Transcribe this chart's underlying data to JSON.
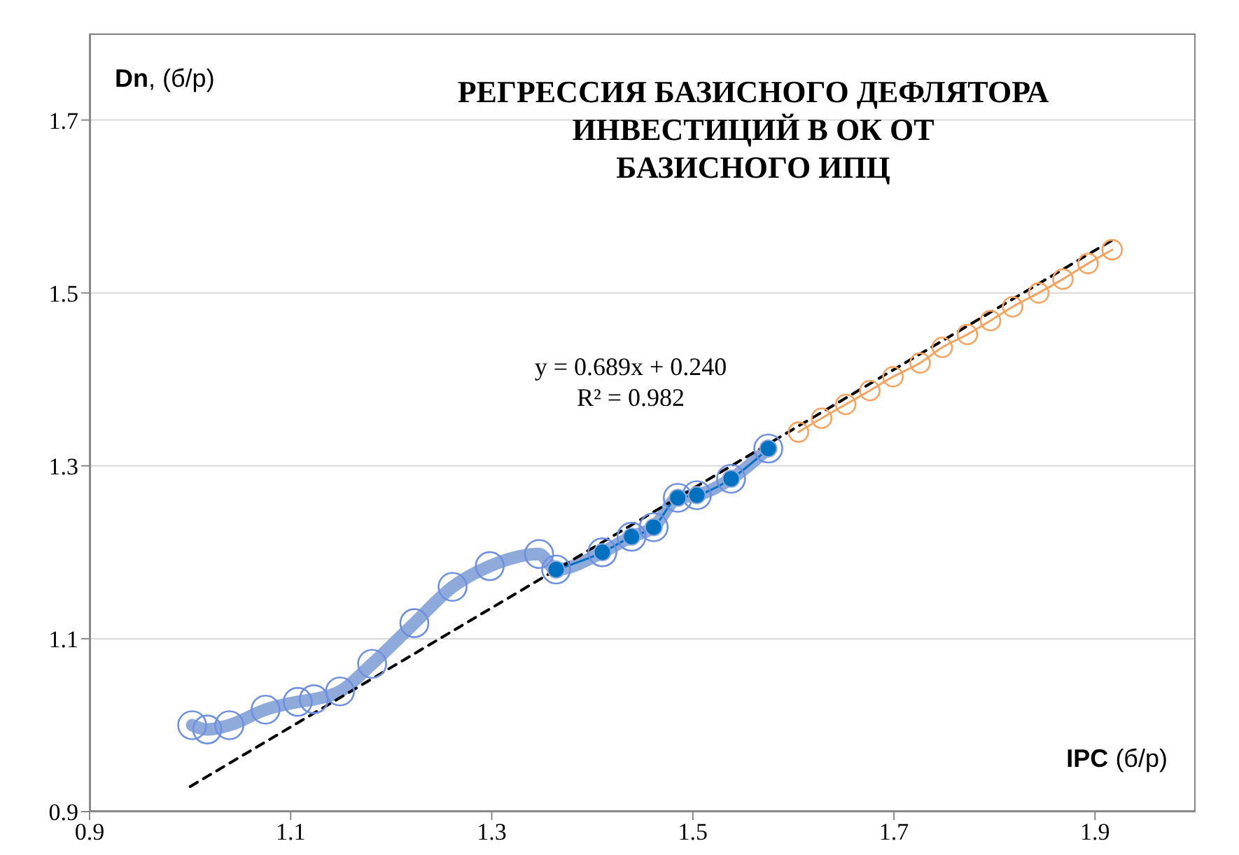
{
  "chart_data": {
    "type": "line",
    "title": "РЕГРЕССИЯ БАЗИСНОГО ДЕФЛЯТОРА\nИНВЕСТИЦИЙ В ОК ОТ\nБАЗИСНОГО ИПЦ",
    "xlabel": "IPC (б/р)",
    "ylabel": "Dn, (б/р)",
    "xlim": [
      0.9,
      2.0
    ],
    "xticks": [
      0.9,
      1.1,
      1.3,
      1.5,
      1.7,
      1.9
    ],
    "ylim": [
      0.9,
      1.8
    ],
    "yticks": [
      0.9,
      1.1,
      1.3,
      1.5,
      1.7
    ],
    "grid": "y",
    "annotations": [
      "y = 0.689x + 0.240",
      "R² = 0.982"
    ],
    "series": [
      {
        "color": "#8eaadb",
        "marker": "circle",
        "x": [
          1.002,
          1.017,
          1.039,
          1.075,
          1.107,
          1.123,
          1.149,
          1.181,
          1.223,
          1.261,
          1.298,
          1.347,
          1.364,
          1.41,
          1.439,
          1.461,
          1.485,
          1.504,
          1.538,
          1.575
        ],
        "values": [
          1.0,
          0.995,
          1.0,
          1.018,
          1.027,
          1.03,
          1.039,
          1.071,
          1.118,
          1.16,
          1.184,
          1.198,
          1.18,
          1.2,
          1.218,
          1.229,
          1.263,
          1.266,
          1.285,
          1.32
        ]
      },
      {
        "color": "#0070c0",
        "marker": "circle",
        "x": [
          1.364,
          1.41,
          1.439,
          1.461,
          1.485,
          1.504,
          1.538,
          1.575
        ],
        "values": [
          1.18,
          1.2,
          1.218,
          1.229,
          1.263,
          1.266,
          1.285,
          1.32
        ]
      },
      {
        "color": "#f4a460",
        "marker": "circle",
        "x": [
          1.605,
          1.628,
          1.652,
          1.676,
          1.699,
          1.726,
          1.748,
          1.773,
          1.796,
          1.818,
          1.844,
          1.868,
          1.893,
          1.917
        ],
        "values": [
          1.339,
          1.355,
          1.371,
          1.387,
          1.403,
          1.419,
          1.437,
          1.452,
          1.468,
          1.484,
          1.5,
          1.516,
          1.534,
          1.55
        ]
      },
      {
        "color": "#000000",
        "marker": "none",
        "line_style": "dashed",
        "x": [
          1.0,
          1.917
        ],
        "values": [
          0.929,
          1.561
        ]
      }
    ]
  }
}
